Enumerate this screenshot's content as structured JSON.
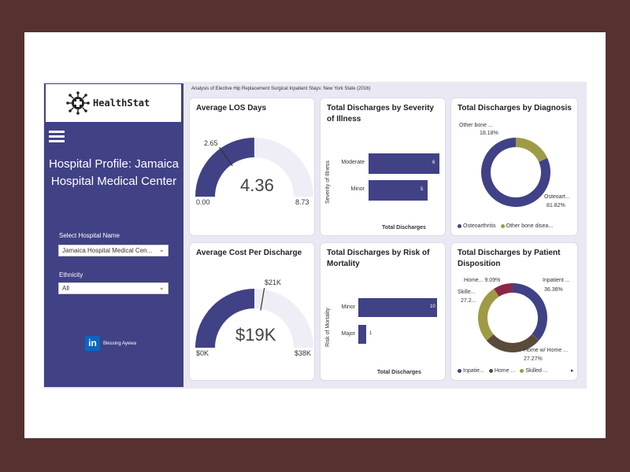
{
  "logo": {
    "text": "HealthStat"
  },
  "sidebar": {
    "title": "Hospital Profile: Jamaica Hospital Medical Center",
    "hospital_label": "Select Hospital Name",
    "hospital_value": "Jamaica Hospital Medical Cen...",
    "ethnicity_label": "Ethnicity",
    "ethnicity_value": "All",
    "author": "Blessing Ayewa"
  },
  "page_heading": "Analysis of Elective Hip Replacement Surgical Inpatient Stays: New York State (2016)",
  "colors": {
    "navy": "#414186",
    "olive": "#9f9a45",
    "maroon": "#8b2846",
    "gauge_track": "#efeef6"
  },
  "chart_data": [
    {
      "type": "gauge",
      "title": "Average LOS Days",
      "value": 4.36,
      "value_label": "4.36",
      "min": 0,
      "min_label": "0.00",
      "max": 8.73,
      "max_label": "8.73",
      "target": 2.65,
      "target_label": "2.65"
    },
    {
      "type": "bar",
      "title": "Total Discharges by Severity of Illness",
      "ylabel": "Severity of Illness",
      "xlabel": "Total Discharges",
      "categories": [
        "Moderate",
        "Minor"
      ],
      "values": [
        6,
        5
      ]
    },
    {
      "type": "pie",
      "title": "Total Discharges by Diagnosis",
      "slices": [
        {
          "label": "Osteoarthritis",
          "short": "Osteoart...",
          "pct": "81.82%",
          "value": 81.82
        },
        {
          "label": "Other bone disea...",
          "short": "Other bone ...",
          "pct": "18.18%",
          "value": 18.18
        }
      ],
      "legend": [
        "Osteoarthritis",
        "Other bone disea..."
      ]
    },
    {
      "type": "gauge",
      "title": "Average Cost Per Discharge",
      "value": 19,
      "value_label": "$19K",
      "min": 0,
      "min_label": "$0K",
      "max": 38,
      "max_label": "$38K",
      "target": 21,
      "target_label": "$21K"
    },
    {
      "type": "bar",
      "title": "Total Discharges by Risk of Mortality",
      "ylabel": "Risk of Mortality",
      "xlabel": "Total Discharges",
      "categories": [
        "Minor",
        "Major"
      ],
      "values": [
        10,
        1
      ]
    },
    {
      "type": "pie",
      "title": "Total Discharges by Patient Disposition",
      "slices": [
        {
          "label": "Inpatient ...",
          "short": "Inpatient ...",
          "pct": "36.36%",
          "value": 36.36
        },
        {
          "label": "Home w/ Home ...",
          "short": "Home w/ Home ...",
          "pct": "27.27%",
          "value": 27.27
        },
        {
          "label": "Skilled ...",
          "short": "Skille...",
          "pct": "27.2...",
          "value": 27.27
        },
        {
          "label": "Home...",
          "short": "Home...",
          "pct": "9.09%",
          "value": 9.09
        }
      ],
      "legend": [
        "Inpatie...",
        "Home ...",
        "Skilled ..."
      ]
    }
  ]
}
